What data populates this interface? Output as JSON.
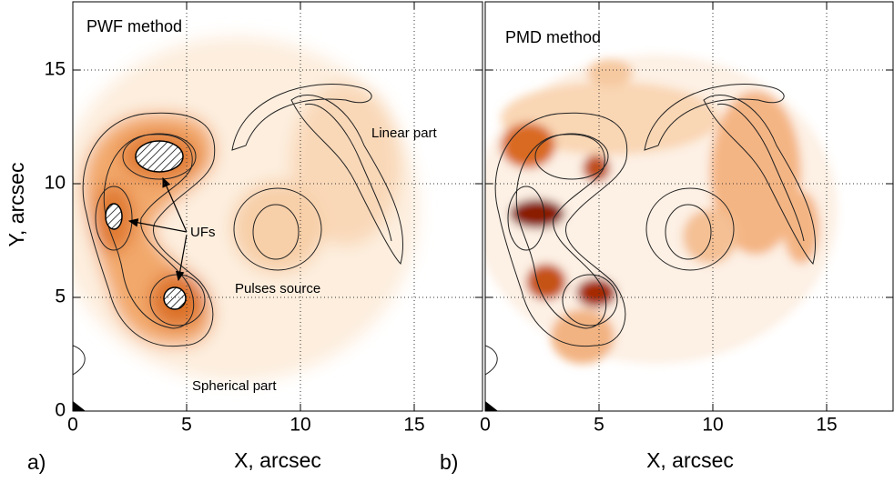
{
  "chart_data": [
    {
      "type": "heatmap",
      "title": "PWF method",
      "panel_label": "a)",
      "x_label": "X, arcsec",
      "y_label": "Y, arcsec",
      "xlim": [
        0,
        18
      ],
      "ylim": [
        0,
        18
      ],
      "xticks": [
        0,
        5,
        10,
        15
      ],
      "yticks": [
        0,
        5,
        10,
        15
      ],
      "grid": true,
      "ytick_labels": true,
      "annotations": [
        "Linear part",
        "UFs",
        "Pulses source",
        "Spherical part"
      ]
    },
    {
      "type": "heatmap",
      "title": "PMD method",
      "panel_label": "b)",
      "x_label": "X, arcsec",
      "xlim": [
        0,
        18
      ],
      "ylim": [
        0,
        18
      ],
      "xticks": [
        0,
        5,
        10,
        15
      ],
      "yticks": [
        0,
        5,
        10,
        15
      ],
      "grid": true,
      "ytick_labels": false
    }
  ]
}
